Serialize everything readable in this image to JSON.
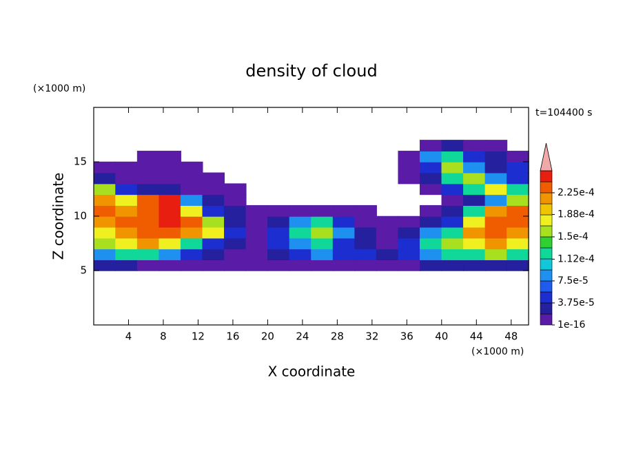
{
  "chart_data": {
    "type": "contour",
    "title": "density of cloud",
    "x_label": "X coordinate",
    "y_label": "Z coordinate",
    "x_unit": "(×1000 m)",
    "y_unit": "(×1000 m)",
    "annotation": "t=104400 s",
    "xlim": [
      0,
      50
    ],
    "ylim": [
      0,
      20
    ],
    "xticks": [
      4,
      8,
      12,
      16,
      20,
      24,
      28,
      32,
      36,
      40,
      44,
      48
    ],
    "yticks": [
      5,
      10,
      15
    ],
    "x": [
      1.25,
      3.75,
      6.25,
      8.75,
      11.25,
      13.75,
      16.25,
      18.75,
      21.25,
      23.75,
      26.25,
      28.75,
      31.25,
      33.75,
      36.25,
      38.75,
      41.25,
      43.75,
      46.25,
      48.75
    ],
    "y": [
      5.5,
      6.5,
      7.5,
      8.5,
      9.5,
      10.5,
      11.5,
      12.5,
      13.5,
      14.5,
      15.5,
      16.5
    ],
    "z": [
      [
        3e-05,
        3e-05,
        1e-05,
        1e-05,
        1e-05,
        1e-05,
        1e-05,
        1e-05,
        1e-05,
        1e-05,
        1e-05,
        1e-05,
        1e-05,
        1e-05,
        1e-05,
        3e-05,
        3e-05,
        3e-05,
        3e-05,
        3e-05
      ],
      [
        8e-05,
        0.00012,
        0.00012,
        8e-05,
        5e-05,
        3e-05,
        1e-05,
        1e-05,
        3e-05,
        5e-05,
        8e-05,
        5e-05,
        5e-05,
        3e-05,
        5e-05,
        8e-05,
        0.00012,
        0.00012,
        0.00015,
        0.00012
      ],
      [
        0.00015,
        0.00018,
        0.00021,
        0.00018,
        0.00012,
        5e-05,
        3e-05,
        1e-05,
        5e-05,
        8e-05,
        0.00012,
        5e-05,
        3e-05,
        1e-05,
        5e-05,
        0.00012,
        0.00015,
        0.00018,
        0.00021,
        0.00018
      ],
      [
        0.00018,
        0.00021,
        0.00023,
        0.00023,
        0.00021,
        0.00018,
        5e-05,
        1e-05,
        5e-05,
        0.00012,
        0.00015,
        8e-05,
        3e-05,
        1e-05,
        3e-05,
        8e-05,
        0.00012,
        0.00021,
        0.00023,
        0.00021
      ],
      [
        0.00021,
        0.00023,
        0.00023,
        0.00025,
        0.00023,
        0.00015,
        3e-05,
        1e-05,
        3e-05,
        8e-05,
        0.00012,
        5e-05,
        1e-05,
        1e-05,
        1e-05,
        3e-05,
        5e-05,
        0.00018,
        0.00023,
        0.00023
      ],
      [
        0.00023,
        0.00021,
        0.00023,
        0.00025,
        0.00018,
        5e-05,
        3e-05,
        1e-05,
        1e-05,
        1e-05,
        1e-05,
        1e-05,
        1e-05,
        null,
        null,
        1e-05,
        3e-05,
        0.00012,
        0.00021,
        0.00023
      ],
      [
        0.00021,
        0.00018,
        0.00023,
        0.00025,
        8e-05,
        3e-05,
        1e-05,
        null,
        null,
        null,
        null,
        null,
        null,
        null,
        null,
        null,
        1e-05,
        3e-05,
        8e-05,
        0.00015
      ],
      [
        0.00015,
        5e-05,
        3e-05,
        3e-05,
        1e-05,
        1e-05,
        1e-05,
        null,
        null,
        null,
        null,
        null,
        null,
        null,
        null,
        1e-05,
        5e-05,
        0.00012,
        0.00018,
        0.00012
      ],
      [
        3e-05,
        1e-05,
        1e-05,
        1e-05,
        1e-05,
        1e-05,
        null,
        null,
        null,
        null,
        null,
        null,
        null,
        null,
        1e-05,
        3e-05,
        0.00012,
        0.00015,
        8e-05,
        5e-05
      ],
      [
        1e-05,
        1e-05,
        1e-05,
        1e-05,
        1e-05,
        null,
        null,
        null,
        null,
        null,
        null,
        null,
        null,
        null,
        1e-05,
        5e-05,
        0.00015,
        8e-05,
        3e-05,
        5e-05
      ],
      [
        null,
        null,
        1e-05,
        1e-05,
        null,
        null,
        null,
        null,
        null,
        null,
        null,
        null,
        null,
        null,
        1e-05,
        8e-05,
        0.00012,
        5e-05,
        3e-05,
        1e-05
      ],
      [
        null,
        null,
        null,
        null,
        null,
        null,
        null,
        null,
        null,
        null,
        null,
        null,
        null,
        null,
        null,
        1e-05,
        3e-05,
        1e-05,
        1e-05,
        null
      ]
    ],
    "clim": [
      0,
      0.0002625
    ],
    "levels": [
      1e-16,
      1.875e-05,
      3.75e-05,
      5.625e-05,
      7.5e-05,
      9.375e-05,
      0.0001125,
      0.00013125,
      0.00015,
      0.00016875,
      0.0001875,
      0.00020625,
      0.000225,
      0.00024375
    ],
    "colors": [
      "#5a1ca6",
      "#24209e",
      "#1c2ed0",
      "#1e5cf0",
      "#1e90f0",
      "#12c8d8",
      "#10d898",
      "#30d030",
      "#a8e020",
      "#f0f020",
      "#f0c400",
      "#f09400",
      "#f05c00",
      "#e81e10"
    ],
    "overflow_color": "#f0a8a8",
    "cticks": [
      {
        "value": 1e-16,
        "label": "1e-16"
      },
      {
        "value": 3.75e-05,
        "label": "3.75e-5"
      },
      {
        "value": 7.5e-05,
        "label": "7.5e-5"
      },
      {
        "value": 0.000112,
        "label": "1.12e-4"
      },
      {
        "value": 0.00015,
        "label": "1.5e-4"
      },
      {
        "value": 0.000188,
        "label": "1.88e-4"
      },
      {
        "value": 0.000225,
        "label": "2.25e-4"
      }
    ]
  }
}
